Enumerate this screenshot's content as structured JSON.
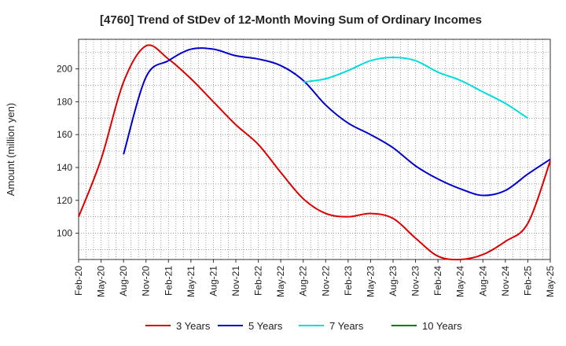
{
  "chart_data": {
    "type": "line",
    "title": "[4760]  Trend of StDev of 12-Month Moving Sum of Ordinary Incomes",
    "xlabel": "",
    "ylabel": "Amount (million yen)",
    "ylim": [
      84,
      218
    ],
    "yticks": [
      100,
      120,
      140,
      160,
      180,
      200
    ],
    "grid": true,
    "legend_position": "bottom",
    "categories": [
      "Feb-20",
      "May-20",
      "Aug-20",
      "Nov-20",
      "Feb-21",
      "May-21",
      "Aug-21",
      "Nov-21",
      "Feb-22",
      "May-22",
      "Aug-22",
      "Nov-22",
      "Feb-23",
      "May-23",
      "Aug-23",
      "Nov-23",
      "Feb-24",
      "May-24",
      "Aug-24",
      "Nov-24",
      "Feb-25",
      "May-25"
    ],
    "series": [
      {
        "name": "3 Years",
        "color": "#dd0000",
        "values": [
          110,
          145,
          192,
          214,
          206,
          194,
          180,
          166,
          154,
          137,
          121,
          112,
          110,
          112,
          109,
          97,
          86,
          84,
          87,
          95,
          106,
          144
        ]
      },
      {
        "name": "5 Years",
        "color": "#0000cc",
        "values": [
          null,
          null,
          148,
          195,
          205,
          212,
          212,
          208,
          206,
          202,
          193,
          178,
          167,
          160,
          152,
          141,
          133,
          127,
          123,
          126,
          136,
          145
        ]
      },
      {
        "name": "7 Years",
        "color": "#00dddd",
        "values": [
          null,
          null,
          null,
          null,
          null,
          null,
          null,
          null,
          null,
          null,
          192,
          194,
          199,
          205,
          207,
          205,
          198,
          193,
          186,
          179,
          170,
          null
        ]
      },
      {
        "name": "10 Years",
        "color": "#008000",
        "values": [
          null,
          null,
          null,
          null,
          null,
          null,
          null,
          null,
          null,
          null,
          null,
          null,
          null,
          null,
          null,
          null,
          null,
          null,
          null,
          null,
          null,
          null
        ]
      }
    ]
  }
}
